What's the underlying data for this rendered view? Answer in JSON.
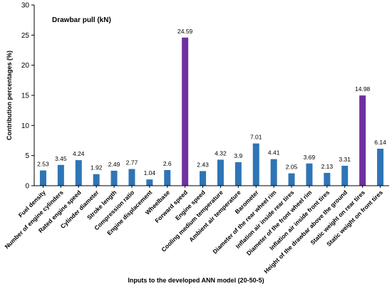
{
  "chart_data": {
    "type": "bar",
    "title": "Drawbar pull (kN)",
    "xlabel": "Inputs to the developed ANN model (20-50-5)",
    "ylabel": "Contribution percentages  (%)",
    "ylim": [
      0,
      30
    ],
    "yticks": [
      0,
      5,
      10,
      15,
      20,
      25,
      30
    ],
    "grid": false,
    "legend": "none",
    "categories": [
      "Fuel density",
      "Number of engine cylinders",
      "Rated engine speed",
      "Cylinder diameter",
      "Stroke length",
      "Compression ratio",
      "Engine displacement",
      "Wheelbase",
      "Forward speed",
      "Engine speed",
      "Cooling medium temperature",
      "Ambient air temperature",
      "Barometer",
      "Diameter of the rear wheel rim",
      "Inflation air inside rear tires",
      "Diameter of the front wheel rim",
      "Inflation air inside front tires",
      "Height of the drawbar above the ground",
      "Static weight on rear tires",
      "Static weight on front tires"
    ],
    "values": [
      2.53,
      3.45,
      4.24,
      1.92,
      2.49,
      2.77,
      1.04,
      2.6,
      24.59,
      2.43,
      4.32,
      3.9,
      7.01,
      4.41,
      2.05,
      3.69,
      2.13,
      3.31,
      14.98,
      6.14
    ],
    "value_labels": [
      "2.53",
      "3.45",
      "4.24",
      "1.92",
      "2.49",
      "2.77",
      "1.04",
      "2.6",
      "24.59",
      "2.43",
      "4.32",
      "3.9",
      "7.01",
      "4.41",
      "2.05",
      "3.69",
      "2.13",
      "3.31",
      "14.98",
      "6.14"
    ],
    "highlighted": [
      "Forward speed",
      "Static weight on rear tires"
    ],
    "colors": {
      "bar": "#2E75B6",
      "highlight": "#7030A0",
      "axis": "#000000"
    }
  }
}
